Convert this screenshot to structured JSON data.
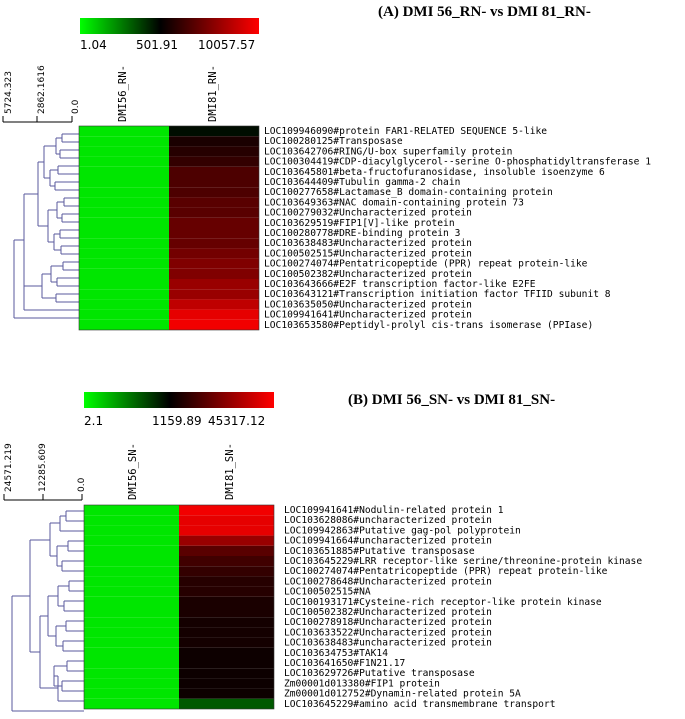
{
  "chart_data": [
    {
      "type": "heatmap",
      "title": "(A) DMI 56_RN- vs DMI 81_RN-",
      "color_scale": {
        "colors": [
          "#00ff00",
          "#000000",
          "#ff0000"
        ],
        "tick_labels": [
          "1.04",
          "501.91",
          "10057.57"
        ]
      },
      "dendrogram_scale_labels": [
        "5724.323",
        "2862.1616",
        "0.0"
      ],
      "columns": [
        "DMI56_RN-",
        "DMI81_RN-"
      ],
      "rows": [
        "LOC109946090#protein FAR1-RELATED SEQUENCE 5-like",
        "LOC100280125#Transposase",
        "LOC103642706#RING/U-box superfamily protein",
        "LOC100304419#CDP-diacylglycerol--serine O-phosphatidyltransferase 1",
        "LOC103645801#beta-fructofuranosidase, insoluble isoenzyme 6",
        "LOC103644409#Tubulin gamma-2 chain",
        "LOC100277658#Lactamase_B domain-containing protein",
        "LOC103649363#NAC domain-containing protein 73",
        "LOC100279032#Uncharacterized protein",
        "LOC103629519#FIP1[V]-like protein",
        "LOC100280778#DRE-binding protein 3",
        "LOC103638483#Uncharacterized protein",
        "LOC100502515#Uncharacterized protein",
        "LOC100274074#Pentatricopeptide (PPR) repeat protein-like",
        "LOC100502382#Uncharacterized protein",
        "LOC103643666#E2F transcription factor-like E2FE",
        "LOC103643121#Transcription initiation factor TFIID subunit 8",
        "LOC103635050#Uncharacterized protein",
        "LOC109941641#Uncharacterized protein",
        "LOC103653580#Peptidyl-prolyl cis-trans isomerase (PPIase)"
      ],
      "values": [
        [
          0.0,
          -0.05
        ],
        [
          0.0,
          0.1
        ],
        [
          0.0,
          0.15
        ],
        [
          0.0,
          0.2
        ],
        [
          0.0,
          0.3
        ],
        [
          0.0,
          0.3
        ],
        [
          0.0,
          0.3
        ],
        [
          0.0,
          0.35
        ],
        [
          0.0,
          0.35
        ],
        [
          0.0,
          0.4
        ],
        [
          0.0,
          0.4
        ],
        [
          0.0,
          0.4
        ],
        [
          0.0,
          0.45
        ],
        [
          0.0,
          0.5
        ],
        [
          0.0,
          0.5
        ],
        [
          0.0,
          0.6
        ],
        [
          0.0,
          0.6
        ],
        [
          0.0,
          0.75
        ],
        [
          0.0,
          0.9
        ],
        [
          0.0,
          0.95
        ]
      ]
    },
    {
      "type": "heatmap",
      "title": "(B) DMI 56_SN- vs DMI 81_SN-",
      "color_scale": {
        "colors": [
          "#00ff00",
          "#000000",
          "#ff0000"
        ],
        "tick_labels": [
          "2.1",
          "1159.89",
          "45317.12"
        ]
      },
      "dendrogram_scale_labels": [
        "24571.219",
        "12285.609",
        "0.0"
      ],
      "columns": [
        "DMI56_SN-",
        "DMI81_SN-"
      ],
      "rows": [
        "LOC109941641#Nodulin-related protein 1",
        "LOC103628086#uncharacterized protein",
        "LOC109942863#Putative gag-pol polyprotein",
        "LOC109941664#uncharacterized protein",
        "LOC103651885#Putative transposase",
        "LOC103645229#LRR receptor-like serine/threonine-protein kinase",
        "LOC100274074#Pentatricopeptide (PPR) repeat protein-like",
        "LOC100278648#Uncharacterized protein",
        "LOC100502515#NA",
        "LOC100193171#Cysteine-rich receptor-like protein kinase",
        "LOC100502382#Uncharacterized protein",
        "LOC100278918#Uncharacterized protein",
        "LOC103633522#Uncharacterized protein",
        "LOC103638483#uncharacterized protein",
        "LOC103634753#TAK14",
        "LOC103641650#F1N21.17",
        "LOC103629726#Putative transposase",
        "Zm00001d013380#FIP1 protein",
        "Zm00001d012752#Dynamin-related protein 5A",
        "LOC103645229#amino acid transmembrane transport"
      ],
      "values": [
        [
          0.0,
          0.95
        ],
        [
          0.0,
          0.9
        ],
        [
          0.0,
          0.9
        ],
        [
          0.0,
          0.6
        ],
        [
          0.0,
          0.35
        ],
        [
          0.0,
          0.25
        ],
        [
          0.0,
          0.2
        ],
        [
          0.0,
          0.15
        ],
        [
          0.0,
          0.15
        ],
        [
          0.0,
          0.1
        ],
        [
          0.0,
          0.1
        ],
        [
          0.0,
          0.08
        ],
        [
          0.0,
          0.08
        ],
        [
          0.0,
          0.08
        ],
        [
          0.0,
          0.05
        ],
        [
          0.0,
          0.05
        ],
        [
          0.0,
          0.05
        ],
        [
          0.0,
          0.05
        ],
        [
          0.0,
          0.05
        ],
        [
          0.0,
          -0.35
        ]
      ]
    }
  ]
}
